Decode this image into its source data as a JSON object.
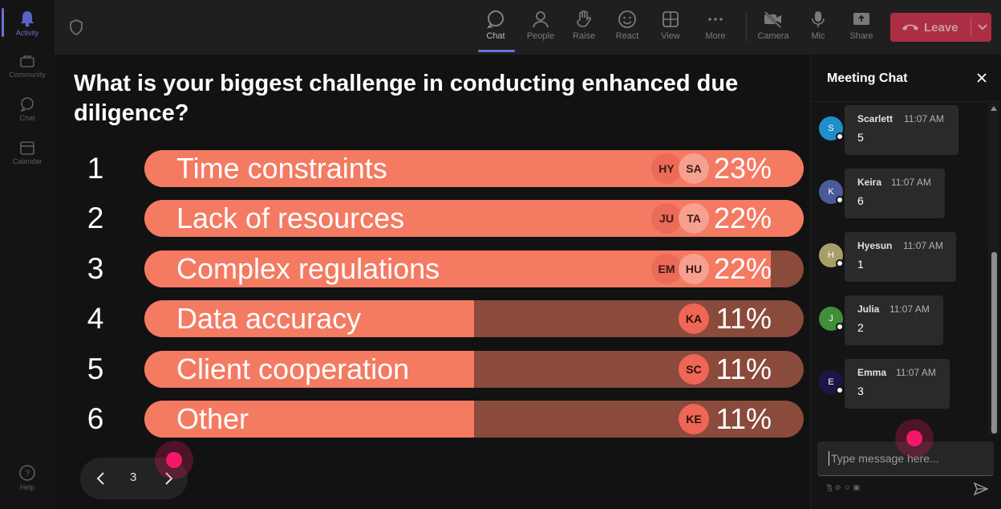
{
  "rail": {
    "items": [
      {
        "label": "Activity",
        "icon": "bell-icon"
      },
      {
        "label": "Community",
        "icon": "community-icon"
      },
      {
        "label": "Chat",
        "icon": "chat-icon"
      },
      {
        "label": "Calendar",
        "icon": "calendar-icon"
      },
      {
        "label": "Help",
        "icon": "help-icon"
      }
    ]
  },
  "toolbar": {
    "buttons": [
      {
        "label": "Chat",
        "icon": "chat-icon",
        "active": true
      },
      {
        "label": "People",
        "icon": "people-icon"
      },
      {
        "label": "Raise",
        "icon": "raise-hand-icon"
      },
      {
        "label": "React",
        "icon": "react-icon"
      },
      {
        "label": "View",
        "icon": "view-icon"
      },
      {
        "label": "More",
        "icon": "more-icon"
      },
      {
        "label": "Camera",
        "icon": "camera-off-icon"
      },
      {
        "label": "Mic",
        "icon": "mic-icon"
      },
      {
        "label": "Share",
        "icon": "share-icon"
      }
    ],
    "leave_label": "Leave",
    "leave_color": "#c4314b"
  },
  "poll": {
    "question": "What is your biggest challenge in conducting enhanced due diligence?",
    "options": [
      {
        "num": "1",
        "label": "Time constraints",
        "pct": "23%",
        "fill": 1.0,
        "avatars": [
          "HY",
          "SA"
        ]
      },
      {
        "num": "2",
        "label": "Lack of resources",
        "pct": "22%",
        "fill": 1.0,
        "avatars": [
          "JU",
          "TA"
        ]
      },
      {
        "num": "3",
        "label": "Complex regulations",
        "pct": "22%",
        "fill": 0.95,
        "avatars": [
          "EM",
          "HU"
        ]
      },
      {
        "num": "4",
        "label": "Data accuracy",
        "pct": "11%",
        "fill": 0.5,
        "avatars": [
          "KA"
        ]
      },
      {
        "num": "5",
        "label": "Client cooperation",
        "pct": "11%",
        "fill": 0.5,
        "avatars": [
          "SC"
        ]
      },
      {
        "num": "6",
        "label": "Other",
        "pct": "11%",
        "fill": 0.5,
        "avatars": [
          "KE"
        ]
      }
    ],
    "bar_color": "#f47a62",
    "bar_track_color": "#8a4a3c"
  },
  "pager": {
    "page": "3"
  },
  "chat": {
    "title": "Meeting Chat",
    "messages": [
      {
        "initial": "S",
        "name": "Scarlett",
        "time": "11:07 AM",
        "text": "5",
        "color": "#1f8fc9"
      },
      {
        "initial": "K",
        "name": "Keira",
        "time": "11:07 AM",
        "text": "6",
        "color": "#4b5a9a"
      },
      {
        "initial": "H",
        "name": "Hyesun",
        "time": "11:07 AM",
        "text": "1",
        "color": "#a99e6a"
      },
      {
        "initial": "J",
        "name": "Julia",
        "time": "11:07 AM",
        "text": "2",
        "color": "#3f8f3a"
      },
      {
        "initial": "E",
        "name": "Emma",
        "time": "11:07 AM",
        "text": "3",
        "color": "#1e1547"
      }
    ],
    "placeholder": "Type message here..."
  }
}
